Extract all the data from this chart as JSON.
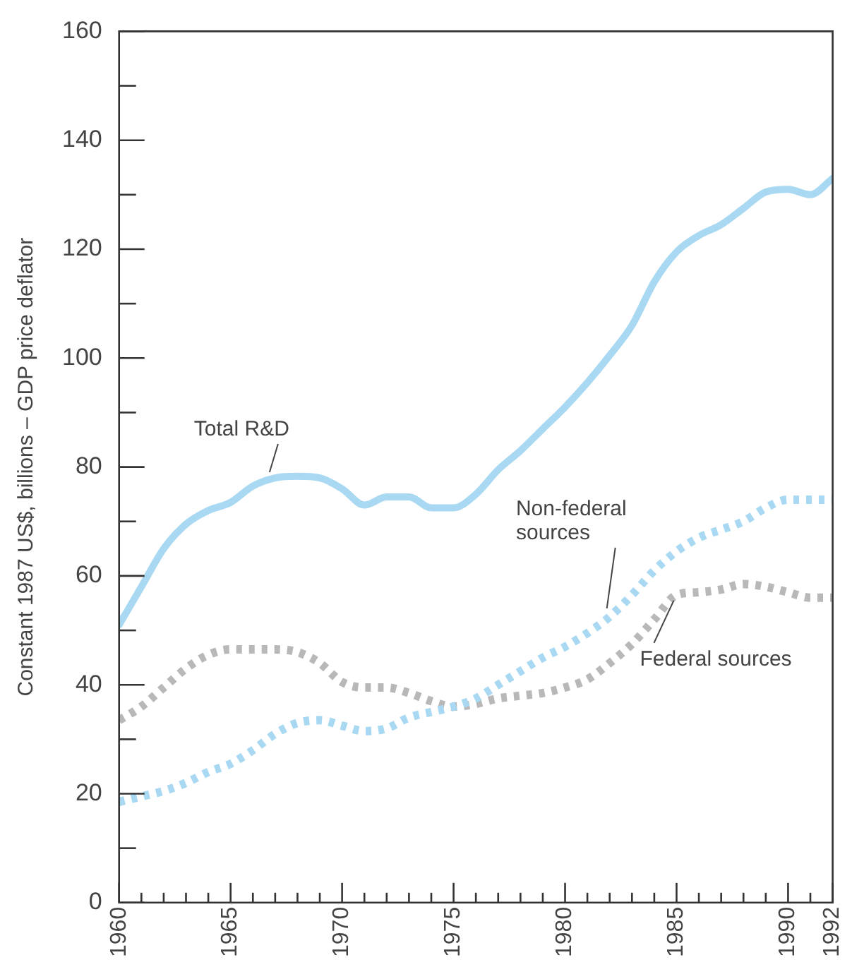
{
  "chart_data": {
    "type": "line",
    "ylabel": "Constant 1987 US$, billions – GDP price deflator",
    "x": [
      1960,
      1961,
      1962,
      1963,
      1964,
      1965,
      1966,
      1967,
      1968,
      1969,
      1970,
      1971,
      1972,
      1973,
      1974,
      1975,
      1976,
      1977,
      1978,
      1979,
      1980,
      1981,
      1982,
      1983,
      1984,
      1985,
      1986,
      1987,
      1988,
      1989,
      1990,
      1991,
      1992
    ],
    "series": [
      {
        "name": "Total R&D",
        "color": "#a8d8f2",
        "line_style": "solid",
        "values": [
          51,
          58,
          65,
          69.5,
          72,
          73.5,
          76.5,
          78,
          78.3,
          78,
          76,
          73,
          74.5,
          74.5,
          72.5,
          72.5,
          75,
          79.5,
          83,
          87,
          91,
          95.5,
          100.5,
          106,
          114,
          119.5,
          122.5,
          124.5,
          127.5,
          130.5,
          131,
          130,
          133
        ]
      },
      {
        "name": "Non-federal sources",
        "color": "#a8d8f2",
        "line_style": "dotted",
        "values": [
          18.5,
          19.5,
          20.5,
          22,
          24,
          25.5,
          28,
          31,
          33,
          33.5,
          32.5,
          31.5,
          32,
          34,
          35,
          36,
          37.5,
          40,
          42.5,
          45,
          47,
          49.5,
          52.5,
          56.5,
          61,
          64.5,
          67,
          68.5,
          70,
          72.5,
          74,
          74,
          74
        ]
      },
      {
        "name": "Federal sources",
        "color": "#b8b8b8",
        "line_style": "dotted",
        "values": [
          33.5,
          36,
          39.5,
          43,
          45.5,
          46.5,
          46.5,
          46.5,
          46,
          44,
          40.5,
          39.5,
          39.5,
          38.5,
          37,
          36,
          36.5,
          37.5,
          38,
          38.5,
          39.5,
          41,
          44,
          47.5,
          52,
          56.5,
          57,
          57.5,
          58.5,
          58,
          57,
          56,
          56
        ]
      }
    ],
    "xlim": [
      1960,
      1992
    ],
    "xticks": [
      1960,
      {
        "value": 1961,
        "label": null
      },
      {
        "value": 1962,
        "label": null
      },
      {
        "value": 1963,
        "label": null
      },
      {
        "value": 1964,
        "label": null
      },
      1965,
      {
        "value": 1966,
        "label": null
      },
      {
        "value": 1967,
        "label": null
      },
      {
        "value": 1968,
        "label": null
      },
      {
        "value": 1969,
        "label": null
      },
      1970,
      {
        "value": 1971,
        "label": null
      },
      {
        "value": 1972,
        "label": null
      },
      {
        "value": 1973,
        "label": null
      },
      {
        "value": 1974,
        "label": null
      },
      1975,
      {
        "value": 1976,
        "label": null
      },
      {
        "value": 1977,
        "label": null
      },
      {
        "value": 1978,
        "label": null
      },
      {
        "value": 1979,
        "label": null
      },
      1980,
      {
        "value": 1981,
        "label": null
      },
      {
        "value": 1982,
        "label": null
      },
      {
        "value": 1983,
        "label": null
      },
      {
        "value": 1984,
        "label": null
      },
      1985,
      {
        "value": 1986,
        "label": null
      },
      {
        "value": 1987,
        "label": null
      },
      {
        "value": 1988,
        "label": null
      },
      {
        "value": 1989,
        "label": null
      },
      1990,
      {
        "value": 1991,
        "label": null
      },
      1992
    ],
    "ylim": [
      0,
      160
    ],
    "yticks": [
      0,
      {
        "value": 10,
        "label": null
      },
      20,
      {
        "value": 30,
        "label": null
      },
      40,
      {
        "value": 50,
        "label": null
      },
      60,
      {
        "value": 70,
        "label": null
      },
      80,
      {
        "value": 90,
        "label": null
      },
      100,
      {
        "value": 110,
        "label": null
      },
      120,
      {
        "value": 130,
        "label": null
      },
      140,
      {
        "value": 150,
        "label": null
      },
      160
    ],
    "grid": false,
    "legend": false,
    "marker": "none"
  }
}
